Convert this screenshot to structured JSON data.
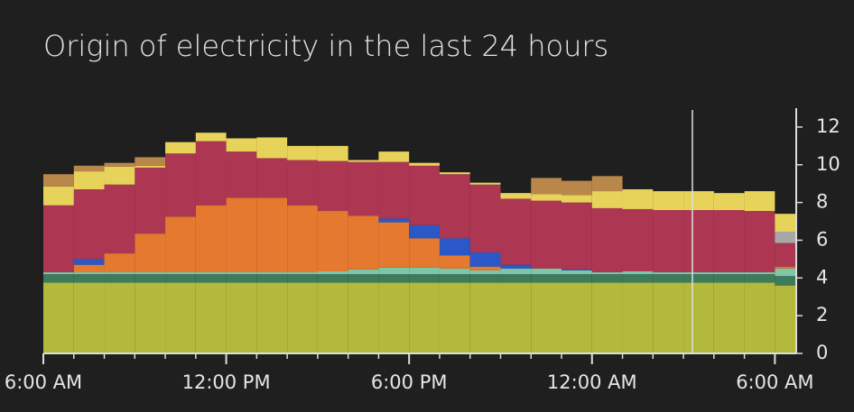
{
  "chart_data": {
    "type": "stacked-step",
    "title": "Origin of electricity in the last 24 hours",
    "x": [
      0,
      1,
      2,
      3,
      4,
      5,
      6,
      7,
      8,
      9,
      10,
      11,
      12,
      13,
      14,
      15,
      16,
      17,
      18,
      19,
      20,
      21,
      22,
      23,
      24
    ],
    "xlim": [
      0,
      24.7
    ],
    "xticks": [
      {
        "value": 0,
        "label": "6:00 AM"
      },
      {
        "value": 6,
        "label": "12:00 PM"
      },
      {
        "value": 12,
        "label": "6:00 PM"
      },
      {
        "value": 18,
        "label": "12:00 AM"
      },
      {
        "value": 24,
        "label": "6:00 AM"
      }
    ],
    "ylim": [
      0,
      13
    ],
    "yticks": [
      0,
      2,
      4,
      6,
      8,
      10,
      12
    ],
    "series": [
      {
        "color": "#b3b93a",
        "values": [
          3.75,
          3.75,
          3.75,
          3.75,
          3.75,
          3.75,
          3.75,
          3.75,
          3.75,
          3.75,
          3.75,
          3.75,
          3.75,
          3.75,
          3.75,
          3.75,
          3.75,
          3.75,
          3.75,
          3.75,
          3.75,
          3.75,
          3.75,
          3.75,
          3.6
        ]
      },
      {
        "color": "#3e7a5c",
        "values": [
          0.45,
          0.45,
          0.45,
          0.45,
          0.45,
          0.45,
          0.45,
          0.45,
          0.45,
          0.45,
          0.45,
          0.45,
          0.45,
          0.45,
          0.45,
          0.45,
          0.45,
          0.45,
          0.45,
          0.45,
          0.45,
          0.45,
          0.45,
          0.45,
          0.5
        ]
      },
      {
        "color": "#7ec6a8",
        "values": [
          0.1,
          0.1,
          0.1,
          0.1,
          0.1,
          0.1,
          0.1,
          0.1,
          0.1,
          0.15,
          0.25,
          0.35,
          0.35,
          0.3,
          0.2,
          0.3,
          0.3,
          0.2,
          0.1,
          0.15,
          0.1,
          0.1,
          0.1,
          0.1,
          0.4
        ]
      },
      {
        "color": "#e4792f",
        "values": [
          0,
          0.4,
          1.0,
          2.05,
          2.95,
          3.55,
          3.95,
          3.95,
          3.55,
          3.2,
          2.85,
          2.4,
          1.55,
          0.7,
          0.2,
          0,
          0,
          0,
          0,
          0,
          0,
          0,
          0,
          0,
          0.1
        ]
      },
      {
        "color": "#2a58c8",
        "values": [
          0,
          0.3,
          0,
          0,
          0,
          0,
          0,
          0,
          0,
          0,
          0,
          0.2,
          0.7,
          0.9,
          0.75,
          0.2,
          0,
          0.05,
          0,
          0,
          0,
          0,
          0,
          0,
          0
        ]
      },
      {
        "color": "#ad3753",
        "values": [
          3.55,
          3.7,
          3.65,
          3.5,
          3.35,
          3.4,
          2.45,
          2.1,
          2.4,
          2.65,
          2.85,
          3.0,
          3.15,
          3.4,
          3.6,
          3.5,
          3.6,
          3.55,
          3.4,
          3.3,
          3.3,
          3.3,
          3.3,
          3.25,
          1.25
        ]
      },
      {
        "color": "#a8a8a8",
        "values": [
          0,
          0,
          0,
          0,
          0,
          0,
          0,
          0,
          0,
          0,
          0,
          0,
          0,
          0,
          0,
          0,
          0,
          0,
          0,
          0,
          0,
          0,
          0,
          0,
          0.6
        ]
      },
      {
        "color": "#e8d35a",
        "values": [
          1.0,
          0.95,
          0.95,
          0.1,
          0.6,
          0.45,
          0.7,
          1.1,
          0.75,
          0.8,
          0.1,
          0.55,
          0.15,
          0.1,
          0.1,
          0.3,
          0.35,
          0.4,
          0.9,
          1.05,
          1.0,
          1.0,
          0.9,
          1.05,
          0.95
        ]
      },
      {
        "color": "#b9874a",
        "values": [
          0.65,
          0.3,
          0.2,
          0.45,
          0,
          0,
          0,
          0,
          0,
          0,
          0,
          0,
          0,
          0,
          0,
          0,
          0.85,
          0.75,
          0.8,
          0,
          0,
          0,
          0,
          0,
          0
        ]
      }
    ]
  }
}
